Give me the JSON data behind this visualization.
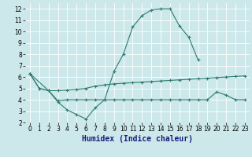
{
  "xlabel": "Humidex (Indice chaleur)",
  "bg_color": "#cce8ea",
  "grid_color": "#ffffff",
  "line_color": "#2d7a6e",
  "xlim": [
    -0.5,
    23.5
  ],
  "ylim": [
    2,
    12.5
  ],
  "xticks": [
    0,
    1,
    2,
    3,
    4,
    5,
    6,
    7,
    8,
    9,
    10,
    11,
    12,
    13,
    14,
    15,
    16,
    17,
    18,
    19,
    20,
    21,
    22,
    23
  ],
  "yticks": [
    2,
    3,
    4,
    5,
    6,
    7,
    8,
    9,
    10,
    11,
    12
  ],
  "line1_x": [
    0,
    1,
    2,
    3,
    4,
    5,
    6,
    7,
    8,
    9,
    10,
    11,
    12,
    13,
    14,
    15,
    16,
    17,
    18,
    19,
    20,
    21,
    22,
    23
  ],
  "line1_y": [
    6.3,
    5.0,
    4.8,
    4.8,
    4.85,
    4.9,
    5.0,
    5.2,
    5.3,
    5.4,
    5.45,
    5.5,
    5.55,
    5.6,
    5.65,
    5.7,
    5.75,
    5.8,
    5.85,
    5.9,
    5.95,
    6.0,
    6.05,
    6.1
  ],
  "line2_x": [
    0,
    1,
    2,
    3,
    4,
    5,
    6,
    7,
    8,
    9,
    10,
    11,
    12,
    13,
    14,
    15,
    16,
    17,
    18
  ],
  "line2_y": [
    6.3,
    5.0,
    4.8,
    3.8,
    3.1,
    2.7,
    2.3,
    3.3,
    4.0,
    6.5,
    8.0,
    10.4,
    11.4,
    11.9,
    12.0,
    12.0,
    10.5,
    9.5,
    7.5
  ],
  "line3_x": [
    0,
    2,
    3,
    4,
    5,
    6,
    7,
    8,
    9,
    10,
    11,
    12,
    13,
    14,
    15,
    16,
    17,
    18,
    19,
    20,
    21,
    22,
    23
  ],
  "line3_y": [
    6.3,
    4.8,
    3.9,
    4.0,
    4.0,
    4.0,
    4.0,
    4.0,
    4.0,
    4.0,
    4.0,
    4.0,
    4.0,
    4.0,
    4.0,
    4.0,
    4.0,
    4.0,
    4.0,
    4.7,
    4.4,
    4.0,
    4.0
  ],
  "xlabel_fontsize": 7,
  "tick_fontsize": 5.5
}
